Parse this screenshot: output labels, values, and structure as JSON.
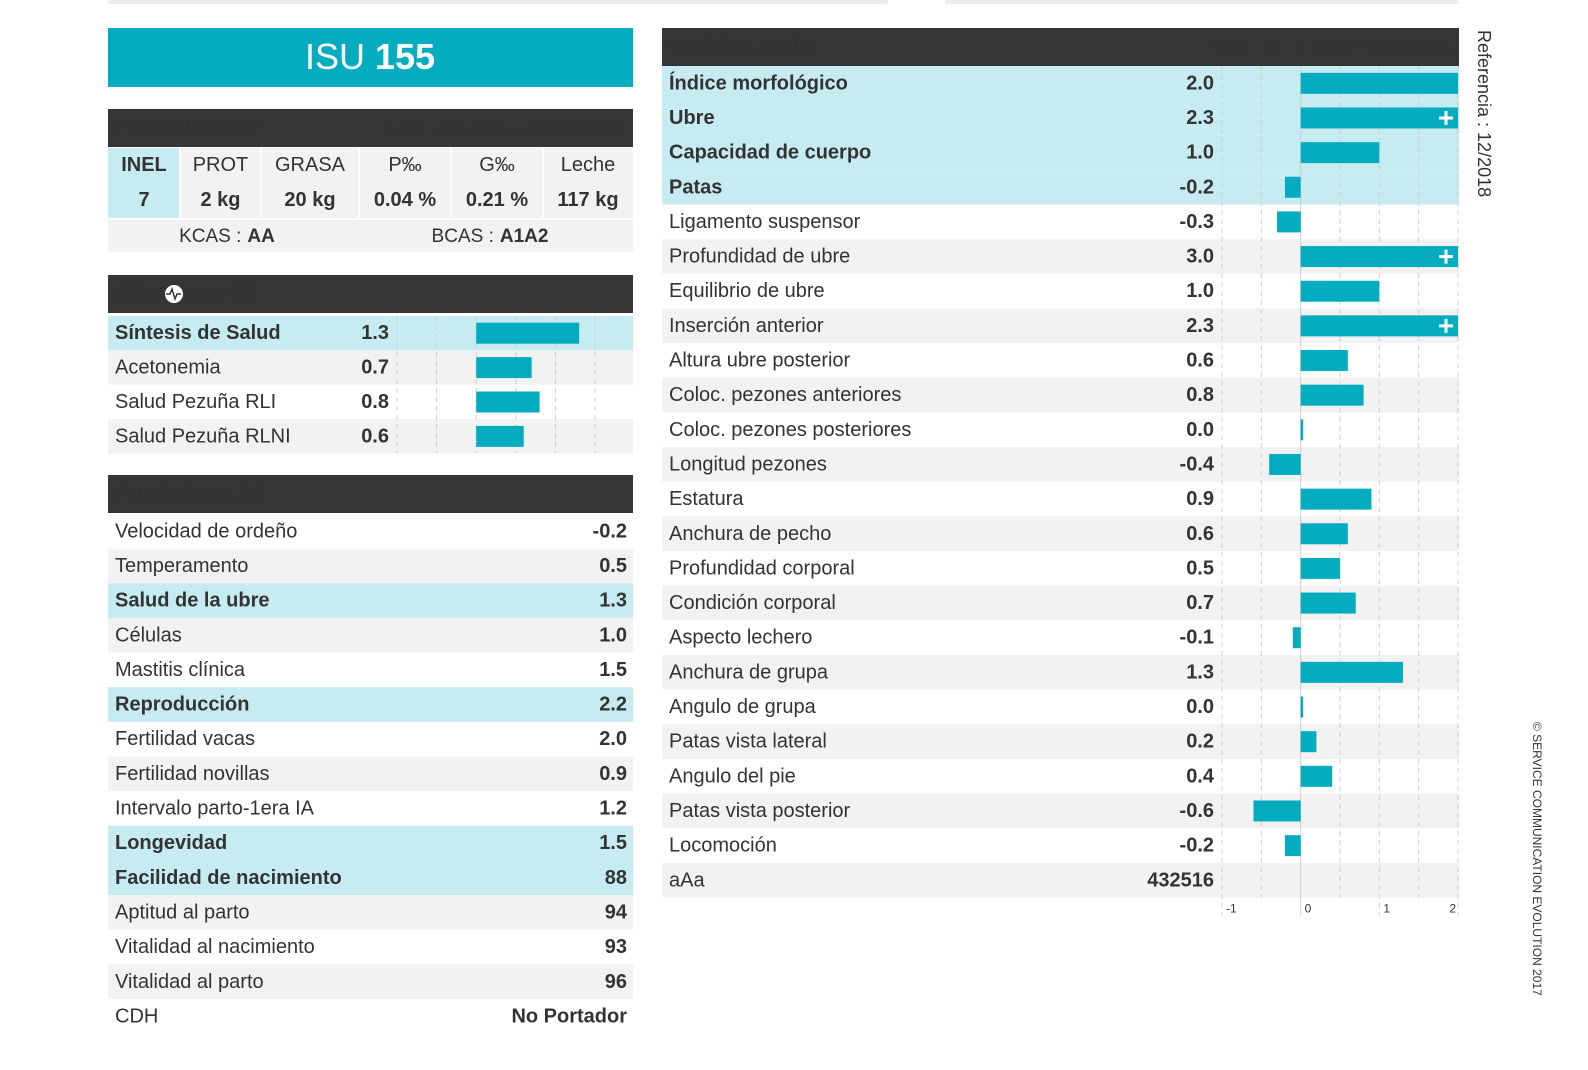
{
  "header": {
    "name": "ISU",
    "number": "155"
  },
  "produccion": {
    "title": "PRODUCCIÓN",
    "conf": "Conf. 76 / 0 Hijas / 0 Rebaños",
    "columns": [
      "INEL",
      "PROT",
      "GRASA",
      "P‰",
      "G‰",
      "Leche"
    ],
    "values": [
      "7",
      "2 kg",
      "20 kg",
      "0.04 %",
      "0.21 %",
      "117 kg"
    ],
    "kcas": {
      "label": "KCAS :",
      "value": "AA"
    },
    "bcas": {
      "label": "BCAS :",
      "value": "A1A2"
    }
  },
  "genosante": {
    "title": [
      "GÉNO",
      "SANTÉ"
    ],
    "xlim": [
      -1,
      1.5
    ],
    "gridlines": [
      -1,
      -0.5,
      0,
      0.5,
      1,
      1.5
    ],
    "rows": [
      {
        "name": "Síntesis de Salud",
        "value": 1.3,
        "highlight": true
      },
      {
        "name": "Acetonemia",
        "value": 0.7,
        "highlight": false
      },
      {
        "name": "Salud Pezuña RLI",
        "value": 0.8,
        "highlight": false
      },
      {
        "name": "Salud Pezuña RLNI",
        "value": 0.6,
        "highlight": false
      }
    ]
  },
  "funcionales": {
    "title": "FUNCIONALES",
    "rows": [
      {
        "name": "Velocidad de ordeño",
        "value": "-0.2",
        "highlight": false
      },
      {
        "name": "Temperamento",
        "value": "0.5",
        "highlight": false
      },
      {
        "name": "Salud de la ubre",
        "value": "1.3",
        "highlight": true
      },
      {
        "name": "Células",
        "value": "1.0",
        "highlight": false
      },
      {
        "name": "Mastitis clínica",
        "value": "1.5",
        "highlight": false
      },
      {
        "name": "Reproducción",
        "value": "2.2",
        "highlight": true
      },
      {
        "name": "Fertilidad vacas",
        "value": "2.0",
        "highlight": false
      },
      {
        "name": "Fertilidad novillas",
        "value": "0.9",
        "highlight": false
      },
      {
        "name": "Intervalo parto-1era IA",
        "value": "1.2",
        "highlight": false
      },
      {
        "name": "Longevidad",
        "value": "1.5",
        "highlight": true
      },
      {
        "name": "Facilidad de nacimiento",
        "value": "88",
        "highlight": true
      },
      {
        "name": "Aptitud al parto",
        "value": "94",
        "highlight": false
      },
      {
        "name": "Vitalidad al nacimiento",
        "value": "93",
        "highlight": false
      },
      {
        "name": "Vitalidad al parto",
        "value": "96",
        "highlight": false
      },
      {
        "name": "CDH",
        "value": "No Portador",
        "highlight": false
      }
    ]
  },
  "morfologia": {
    "title": "MORFOLOGÍA",
    "conf": "Conf. 74 / 0 Hijas / 0 Rebaños",
    "xlim": [
      -1,
      2
    ],
    "xticks": [
      -1,
      0,
      1,
      2
    ],
    "gridlines": [
      -0.5,
      0.5,
      1.5
    ],
    "rows": [
      {
        "name": "Índice morfológico",
        "value": 2.0,
        "value_label": "2.0",
        "highlight": true
      },
      {
        "name": "Ubre",
        "value": 2.3,
        "value_label": "2.3",
        "highlight": true
      },
      {
        "name": "Capacidad de cuerpo",
        "value": 1.0,
        "value_label": "1.0",
        "highlight": true
      },
      {
        "name": "Patas",
        "value": -0.2,
        "value_label": "-0.2",
        "highlight": true
      },
      {
        "name": "Ligamento suspensor",
        "value": -0.3,
        "value_label": "-0.3",
        "highlight": false
      },
      {
        "name": "Profundidad de ubre",
        "value": 3.0,
        "value_label": "3.0",
        "highlight": false
      },
      {
        "name": "Equilibrio de ubre",
        "value": 1.0,
        "value_label": "1.0",
        "highlight": false
      },
      {
        "name": "Inserción anterior",
        "value": 2.3,
        "value_label": "2.3",
        "highlight": false
      },
      {
        "name": "Altura ubre posterior",
        "value": 0.6,
        "value_label": "0.6",
        "highlight": false
      },
      {
        "name": "Coloc. pezones anteriores",
        "value": 0.8,
        "value_label": "0.8",
        "highlight": false
      },
      {
        "name": "Coloc. pezones posteriores",
        "value": 0.0,
        "value_label": "0.0",
        "highlight": false
      },
      {
        "name": "Longitud pezones",
        "value": -0.4,
        "value_label": "-0.4",
        "highlight": false
      },
      {
        "name": "Estatura",
        "value": 0.9,
        "value_label": "0.9",
        "highlight": false
      },
      {
        "name": "Anchura de pecho",
        "value": 0.6,
        "value_label": "0.6",
        "highlight": false
      },
      {
        "name": "Profundidad corporal",
        "value": 0.5,
        "value_label": "0.5",
        "highlight": false
      },
      {
        "name": "Condición corporal",
        "value": 0.7,
        "value_label": "0.7",
        "highlight": false
      },
      {
        "name": "Aspecto lechero",
        "value": -0.1,
        "value_label": "-0.1",
        "highlight": false
      },
      {
        "name": "Anchura de grupa",
        "value": 1.3,
        "value_label": "1.3",
        "highlight": false
      },
      {
        "name": "Angulo de grupa",
        "value": 0.0,
        "value_label": "0.0",
        "highlight": false
      },
      {
        "name": "Patas vista lateral",
        "value": 0.2,
        "value_label": "0.2",
        "highlight": false
      },
      {
        "name": "Angulo del pie",
        "value": 0.4,
        "value_label": "0.4",
        "highlight": false
      },
      {
        "name": "Patas vista posterior",
        "value": -0.6,
        "value_label": "-0.6",
        "highlight": false
      },
      {
        "name": "Locomoción",
        "value": -0.2,
        "value_label": "-0.2",
        "highlight": false
      }
    ],
    "aAa": {
      "name": "aAa",
      "value": "432516"
    }
  },
  "referencia": "Referencia : 12/2018",
  "copyright": "© SERVICE COMMUNICATION EVOLUTION 2017"
}
